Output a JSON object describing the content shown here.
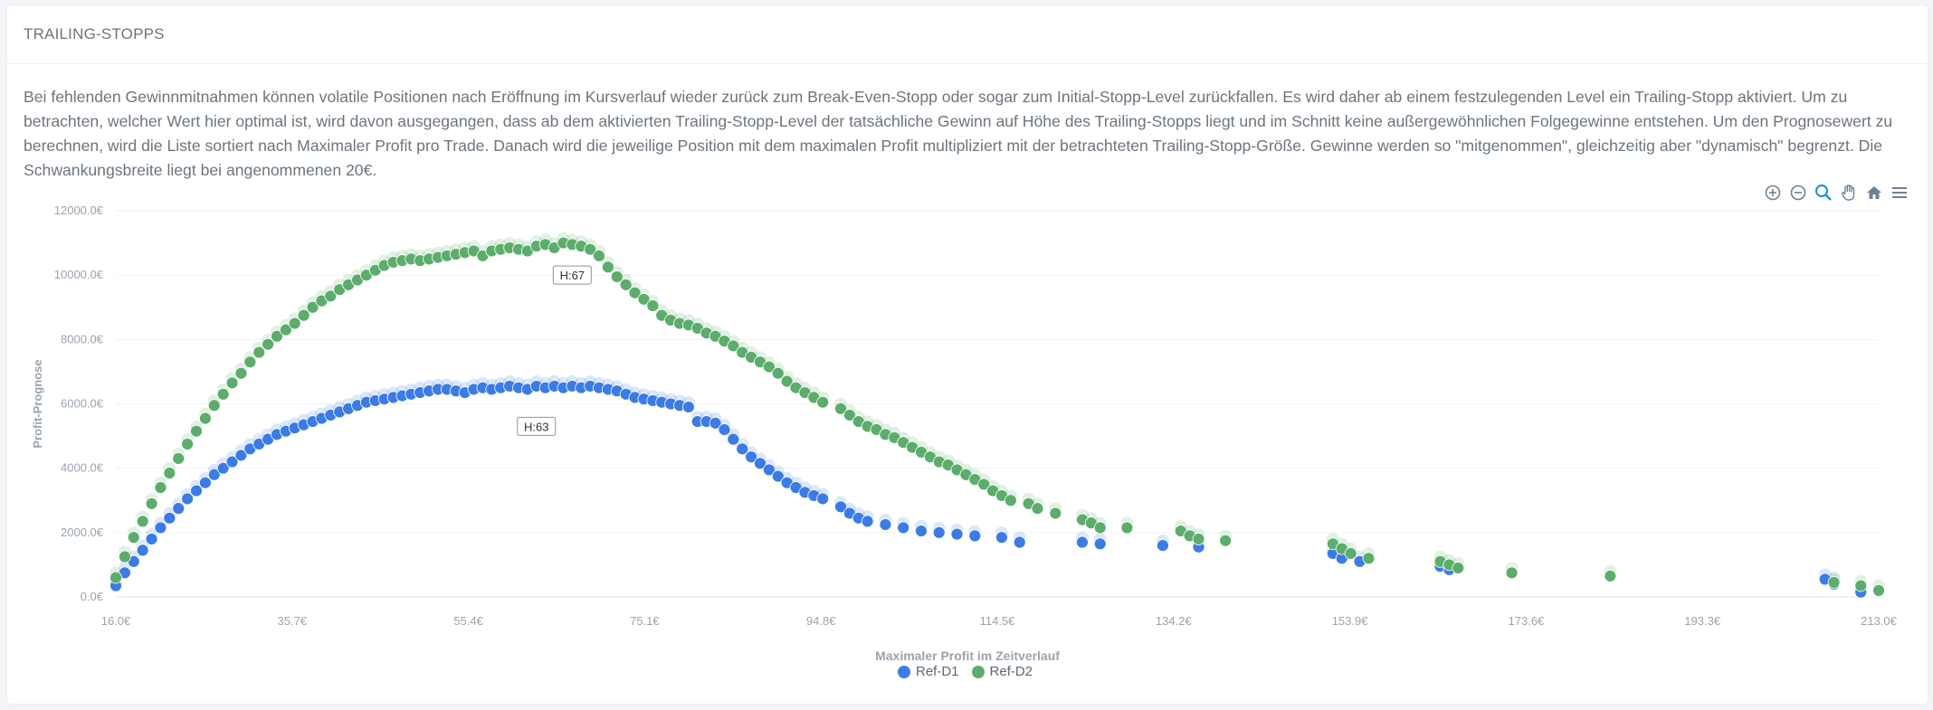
{
  "header": {
    "title": "TRAILING-STOPPS"
  },
  "description": "Bei fehlenden Gewinnmitnahmen können volatile Positionen nach Eröffnung im Kursverlauf wieder zurück zum Break-Even-Stopp oder sogar zum Initial-Stopp-Level zurückfallen. Es wird daher ab einem festzulegenden Level ein Trailing-Stopp aktiviert. Um zu betrachten, welcher Wert hier optimal ist, wird davon ausgegangen, dass ab dem aktivierten Trailing-Stopp-Level der tatsächliche Gewinn auf Höhe des Trailing-Stopps liegt und im Schnitt keine außergewöhnlichen Folgegewinne entstehen. Um den Prognosewert zu berechnen, wird die Liste sortiert nach Maximaler Profit pro Trade. Danach wird die jeweilige Position mit dem maximalen Profit multipliziert mit der betrachteten Trailing-Stopp-Größe. Gewinne werden so \"mitgenommen\", gleichzeitig aber \"dynamisch\" begrenzt. Die Schwankungsbreite liegt bei angenommenen 20€.",
  "toolbar": {
    "zoom_in": "zoom-in-icon",
    "zoom_out": "zoom-out-icon",
    "selection_zoom": "selection-zoom-icon",
    "pan": "hand-icon",
    "reset": "home-icon",
    "menu": "menu-icon"
  },
  "colors": {
    "d1": "#3b7be6",
    "d2": "#5cad6b",
    "grid": "#f0f1f3",
    "axis_text": "#9aa3ad",
    "active_tool": "#1a8fd6"
  },
  "chart_data": {
    "type": "scatter",
    "xlabel": "Maximaler Profit im Zeitverlauf",
    "ylabel": "Profit-Prognose",
    "xlim": [
      16.0,
      213.0
    ],
    "ylim": [
      0,
      12000
    ],
    "x_ticks": [
      "16.0€",
      "35.7€",
      "55.4€",
      "75.1€",
      "94.8€",
      "114.5€",
      "134.2€",
      "153.9€",
      "173.6€",
      "193.3€",
      "213.0€"
    ],
    "y_ticks": [
      "0.0€",
      "2000.0€",
      "4000.0€",
      "6000.0€",
      "8000.0€",
      "10000.0€",
      "12000.0€"
    ],
    "annotations": [
      {
        "text": "H:67",
        "x": 67,
        "y": 10000
      },
      {
        "text": "H:63",
        "x": 63,
        "y": 5300
      }
    ],
    "legend_position": "bottom-center",
    "series": [
      {
        "name": "Ref-D1",
        "points": [
          [
            16,
            350
          ],
          [
            17,
            750
          ],
          [
            18,
            1100
          ],
          [
            19,
            1450
          ],
          [
            20,
            1800
          ],
          [
            21,
            2150
          ],
          [
            22,
            2450
          ],
          [
            23,
            2750
          ],
          [
            24,
            3050
          ],
          [
            25,
            3300
          ],
          [
            26,
            3550
          ],
          [
            27,
            3800
          ],
          [
            28,
            4000
          ],
          [
            29,
            4200
          ],
          [
            30,
            4400
          ],
          [
            31,
            4600
          ],
          [
            32,
            4750
          ],
          [
            33,
            4900
          ],
          [
            34,
            5050
          ],
          [
            35,
            5150
          ],
          [
            36,
            5250
          ],
          [
            37,
            5350
          ],
          [
            38,
            5450
          ],
          [
            39,
            5550
          ],
          [
            40,
            5650
          ],
          [
            41,
            5750
          ],
          [
            42,
            5850
          ],
          [
            43,
            5950
          ],
          [
            44,
            6050
          ],
          [
            45,
            6100
          ],
          [
            46,
            6150
          ],
          [
            47,
            6200
          ],
          [
            48,
            6250
          ],
          [
            49,
            6300
          ],
          [
            50,
            6350
          ],
          [
            51,
            6400
          ],
          [
            52,
            6450
          ],
          [
            53,
            6450
          ],
          [
            54,
            6400
          ],
          [
            55,
            6350
          ],
          [
            56,
            6450
          ],
          [
            57,
            6500
          ],
          [
            58,
            6450
          ],
          [
            59,
            6500
          ],
          [
            60,
            6550
          ],
          [
            61,
            6500
          ],
          [
            62,
            6450
          ],
          [
            63,
            6550
          ],
          [
            64,
            6500
          ],
          [
            65,
            6550
          ],
          [
            66,
            6500
          ],
          [
            67,
            6550
          ],
          [
            68,
            6500
          ],
          [
            69,
            6550
          ],
          [
            70,
            6500
          ],
          [
            71,
            6450
          ],
          [
            72,
            6400
          ],
          [
            73,
            6300
          ],
          [
            74,
            6200
          ],
          [
            75,
            6150
          ],
          [
            76,
            6100
          ],
          [
            77,
            6050
          ],
          [
            78,
            6000
          ],
          [
            79,
            5950
          ],
          [
            80,
            5900
          ],
          [
            81,
            5450
          ],
          [
            82,
            5450
          ],
          [
            83,
            5400
          ],
          [
            84,
            5200
          ],
          [
            85,
            4900
          ],
          [
            86,
            4600
          ],
          [
            87,
            4350
          ],
          [
            88,
            4150
          ],
          [
            89,
            3950
          ],
          [
            90,
            3750
          ],
          [
            91,
            3550
          ],
          [
            92,
            3400
          ],
          [
            93,
            3250
          ],
          [
            94,
            3150
          ],
          [
            95,
            3050
          ],
          [
            97,
            2800
          ],
          [
            98,
            2600
          ],
          [
            99,
            2450
          ],
          [
            100,
            2350
          ],
          [
            102,
            2250
          ],
          [
            104,
            2150
          ],
          [
            106,
            2050
          ],
          [
            108,
            2000
          ],
          [
            110,
            1950
          ],
          [
            112,
            1900
          ],
          [
            115,
            1850
          ],
          [
            117,
            1700
          ],
          [
            124,
            1700
          ],
          [
            126,
            1650
          ],
          [
            133,
            1600
          ],
          [
            137,
            1550
          ],
          [
            152,
            1350
          ],
          [
            153,
            1200
          ],
          [
            155,
            1100
          ],
          [
            164,
            950
          ],
          [
            165,
            850
          ],
          [
            207,
            550
          ],
          [
            208,
            400
          ],
          [
            211,
            150
          ]
        ]
      },
      {
        "name": "Ref-D2",
        "points": [
          [
            16,
            600
          ],
          [
            17,
            1250
          ],
          [
            18,
            1850
          ],
          [
            19,
            2350
          ],
          [
            20,
            2900
          ],
          [
            21,
            3400
          ],
          [
            22,
            3850
          ],
          [
            23,
            4300
          ],
          [
            24,
            4750
          ],
          [
            25,
            5150
          ],
          [
            26,
            5550
          ],
          [
            27,
            5950
          ],
          [
            28,
            6300
          ],
          [
            29,
            6650
          ],
          [
            30,
            6950
          ],
          [
            31,
            7300
          ],
          [
            32,
            7600
          ],
          [
            33,
            7850
          ],
          [
            34,
            8100
          ],
          [
            35,
            8300
          ],
          [
            36,
            8500
          ],
          [
            37,
            8750
          ],
          [
            38,
            9000
          ],
          [
            39,
            9200
          ],
          [
            40,
            9350
          ],
          [
            41,
            9550
          ],
          [
            42,
            9700
          ],
          [
            43,
            9850
          ],
          [
            44,
            10000
          ],
          [
            45,
            10150
          ],
          [
            46,
            10300
          ],
          [
            47,
            10400
          ],
          [
            48,
            10450
          ],
          [
            49,
            10500
          ],
          [
            50,
            10450
          ],
          [
            51,
            10500
          ],
          [
            52,
            10550
          ],
          [
            53,
            10600
          ],
          [
            54,
            10650
          ],
          [
            55,
            10700
          ],
          [
            56,
            10750
          ],
          [
            57,
            10600
          ],
          [
            58,
            10750
          ],
          [
            59,
            10800
          ],
          [
            60,
            10850
          ],
          [
            61,
            10800
          ],
          [
            62,
            10750
          ],
          [
            63,
            10900
          ],
          [
            64,
            10950
          ],
          [
            65,
            10850
          ],
          [
            66,
            11000
          ],
          [
            67,
            10950
          ],
          [
            68,
            10900
          ],
          [
            69,
            10800
          ],
          [
            70,
            10600
          ],
          [
            71,
            10250
          ],
          [
            72,
            9950
          ],
          [
            73,
            9700
          ],
          [
            74,
            9450
          ],
          [
            75,
            9250
          ],
          [
            76,
            9050
          ],
          [
            77,
            8750
          ],
          [
            78,
            8600
          ],
          [
            79,
            8500
          ],
          [
            80,
            8450
          ],
          [
            81,
            8350
          ],
          [
            82,
            8200
          ],
          [
            83,
            8100
          ],
          [
            84,
            7950
          ],
          [
            85,
            7800
          ],
          [
            86,
            7600
          ],
          [
            87,
            7450
          ],
          [
            88,
            7300
          ],
          [
            89,
            7150
          ],
          [
            90,
            6950
          ],
          [
            91,
            6700
          ],
          [
            92,
            6500
          ],
          [
            93,
            6350
          ],
          [
            94,
            6200
          ],
          [
            95,
            6050
          ],
          [
            97,
            5850
          ],
          [
            98,
            5650
          ],
          [
            99,
            5450
          ],
          [
            100,
            5300
          ],
          [
            101,
            5200
          ],
          [
            102,
            5050
          ],
          [
            103,
            4950
          ],
          [
            104,
            4800
          ],
          [
            105,
            4650
          ],
          [
            106,
            4500
          ],
          [
            107,
            4350
          ],
          [
            108,
            4200
          ],
          [
            109,
            4100
          ],
          [
            110,
            3950
          ],
          [
            111,
            3800
          ],
          [
            112,
            3650
          ],
          [
            113,
            3500
          ],
          [
            114,
            3300
          ],
          [
            115,
            3150
          ],
          [
            116,
            3000
          ],
          [
            118,
            2900
          ],
          [
            119,
            2750
          ],
          [
            121,
            2600
          ],
          [
            124,
            2400
          ],
          [
            125,
            2300
          ],
          [
            126,
            2150
          ],
          [
            129,
            2150
          ],
          [
            135,
            2050
          ],
          [
            136,
            1900
          ],
          [
            137,
            1800
          ],
          [
            140,
            1750
          ],
          [
            152,
            1650
          ],
          [
            153,
            1500
          ],
          [
            154,
            1350
          ],
          [
            156,
            1200
          ],
          [
            164,
            1100
          ],
          [
            165,
            1000
          ],
          [
            166,
            900
          ],
          [
            172,
            750
          ],
          [
            183,
            650
          ],
          [
            208,
            450
          ],
          [
            211,
            350
          ],
          [
            213,
            200
          ]
        ]
      }
    ]
  },
  "legend": {
    "d1": "Ref-D1",
    "d2": "Ref-D2"
  }
}
